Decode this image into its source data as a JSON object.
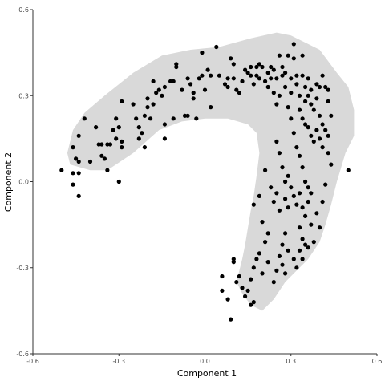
{
  "chart_data": {
    "type": "scatter",
    "title": "",
    "xlabel": "Component 1",
    "ylabel": "Component 2",
    "xlim": [
      -0.6,
      0.6
    ],
    "ylim": [
      -0.6,
      0.6
    ],
    "x_ticks": [
      -0.6,
      -0.3,
      0.0,
      0.3,
      0.6
    ],
    "x_tick_labels": [
      "-0.6",
      "-0.3",
      "0.0",
      "0.3",
      "0.6"
    ],
    "y_ticks": [
      -0.6,
      -0.3,
      0.0,
      0.3,
      0.6
    ],
    "y_tick_labels": [
      "-0.6",
      "-0.3",
      "0.0",
      "0.3",
      "0.6"
    ],
    "grid": false,
    "colors": {
      "points": "#000000",
      "hull": "#d9d9d9",
      "axis": "#333333"
    },
    "hull": [
      [
        -0.34,
        0.04
      ],
      [
        -0.25,
        0.1
      ],
      [
        -0.16,
        0.18
      ],
      [
        -0.08,
        0.21
      ],
      [
        0.0,
        0.22
      ],
      [
        0.08,
        0.22
      ],
      [
        0.15,
        0.2
      ],
      [
        0.18,
        0.17
      ],
      [
        0.19,
        0.1
      ],
      [
        0.18,
        0.02
      ],
      [
        0.17,
        -0.05
      ],
      [
        0.16,
        -0.1
      ],
      [
        0.15,
        -0.16
      ],
      [
        0.14,
        -0.22
      ],
      [
        0.13,
        -0.27
      ],
      [
        0.12,
        -0.31
      ],
      [
        0.11,
        -0.35
      ],
      [
        0.13,
        -0.39
      ],
      [
        0.16,
        -0.43
      ],
      [
        0.2,
        -0.45
      ],
      [
        0.24,
        -0.41
      ],
      [
        0.28,
        -0.35
      ],
      [
        0.32,
        -0.31
      ],
      [
        0.36,
        -0.27
      ],
      [
        0.4,
        -0.21
      ],
      [
        0.42,
        -0.15
      ],
      [
        0.44,
        -0.08
      ],
      [
        0.46,
        0.0
      ],
      [
        0.49,
        0.1
      ],
      [
        0.52,
        0.16
      ],
      [
        0.52,
        0.25
      ],
      [
        0.5,
        0.33
      ],
      [
        0.46,
        0.38
      ],
      [
        0.4,
        0.46
      ],
      [
        0.3,
        0.51
      ],
      [
        0.25,
        0.52
      ],
      [
        0.16,
        0.5
      ],
      [
        0.05,
        0.47
      ],
      [
        -0.05,
        0.46
      ],
      [
        -0.15,
        0.44
      ],
      [
        -0.25,
        0.38
      ],
      [
        -0.35,
        0.3
      ],
      [
        -0.42,
        0.24
      ],
      [
        -0.46,
        0.18
      ],
      [
        -0.48,
        0.1
      ],
      [
        -0.47,
        0.06
      ],
      [
        -0.4,
        0.04
      ]
    ],
    "points": [
      [
        -0.5,
        0.04
      ],
      [
        -0.46,
        0.03
      ],
      [
        -0.44,
        0.03
      ],
      [
        -0.46,
        -0.01
      ],
      [
        -0.44,
        -0.05
      ],
      [
        -0.46,
        0.12
      ],
      [
        -0.45,
        0.08
      ],
      [
        -0.44,
        0.07
      ],
      [
        -0.44,
        0.16
      ],
      [
        -0.42,
        0.22
      ],
      [
        -0.4,
        0.07
      ],
      [
        -0.38,
        0.19
      ],
      [
        -0.37,
        0.13
      ],
      [
        -0.36,
        0.13
      ],
      [
        -0.36,
        0.09
      ],
      [
        -0.35,
        0.08
      ],
      [
        -0.34,
        0.13
      ],
      [
        -0.34,
        0.04
      ],
      [
        -0.33,
        0.13
      ],
      [
        -0.32,
        0.18
      ],
      [
        -0.31,
        0.22
      ],
      [
        -0.31,
        0.15
      ],
      [
        -0.3,
        0.19
      ],
      [
        -0.29,
        0.14
      ],
      [
        -0.29,
        0.12
      ],
      [
        -0.3,
        0.0
      ],
      [
        -0.29,
        0.28
      ],
      [
        -0.25,
        0.27
      ],
      [
        -0.24,
        0.22
      ],
      [
        -0.23,
        0.19
      ],
      [
        -0.23,
        0.15
      ],
      [
        -0.22,
        0.17
      ],
      [
        -0.21,
        0.23
      ],
      [
        -0.21,
        0.12
      ],
      [
        -0.2,
        0.29
      ],
      [
        -0.2,
        0.26
      ],
      [
        -0.19,
        0.22
      ],
      [
        -0.18,
        0.35
      ],
      [
        -0.18,
        0.27
      ],
      [
        -0.17,
        0.31
      ],
      [
        -0.16,
        0.32
      ],
      [
        -0.15,
        0.3
      ],
      [
        -0.14,
        0.33
      ],
      [
        -0.14,
        0.2
      ],
      [
        -0.14,
        0.15
      ],
      [
        -0.12,
        0.35
      ],
      [
        -0.11,
        0.35
      ],
      [
        -0.11,
        0.22
      ],
      [
        -0.1,
        0.41
      ],
      [
        -0.1,
        0.4
      ],
      [
        -0.08,
        0.32
      ],
      [
        -0.07,
        0.23
      ],
      [
        -0.06,
        0.36
      ],
      [
        -0.06,
        0.23
      ],
      [
        -0.05,
        0.34
      ],
      [
        -0.04,
        0.31
      ],
      [
        -0.04,
        0.29
      ],
      [
        -0.03,
        0.22
      ],
      [
        -0.02,
        0.36
      ],
      [
        -0.01,
        0.45
      ],
      [
        -0.01,
        0.37
      ],
      [
        0.0,
        0.32
      ],
      [
        0.01,
        0.39
      ],
      [
        0.02,
        0.37
      ],
      [
        0.02,
        0.26
      ],
      [
        0.04,
        0.47
      ],
      [
        0.05,
        0.37
      ],
      [
        0.07,
        0.34
      ],
      [
        0.08,
        0.36
      ],
      [
        0.08,
        0.33
      ],
      [
        0.09,
        0.43
      ],
      [
        0.1,
        0.41
      ],
      [
        0.1,
        0.36
      ],
      [
        0.11,
        0.32
      ],
      [
        0.12,
        0.31
      ],
      [
        0.13,
        0.35
      ],
      [
        0.14,
        0.39
      ],
      [
        0.15,
        0.38
      ],
      [
        0.16,
        0.4
      ],
      [
        0.16,
        0.37
      ],
      [
        0.17,
        0.34
      ],
      [
        0.18,
        0.4
      ],
      [
        0.18,
        0.37
      ],
      [
        0.19,
        0.41
      ],
      [
        0.19,
        0.36
      ],
      [
        0.2,
        0.4
      ],
      [
        0.21,
        0.35
      ],
      [
        0.22,
        0.38
      ],
      [
        0.22,
        0.33
      ],
      [
        0.23,
        0.4
      ],
      [
        0.23,
        0.36
      ],
      [
        0.24,
        0.39
      ],
      [
        0.24,
        0.31
      ],
      [
        0.25,
        0.36
      ],
      [
        0.25,
        0.27
      ],
      [
        0.26,
        0.44
      ],
      [
        0.26,
        0.3
      ],
      [
        0.27,
        0.37
      ],
      [
        0.27,
        0.4
      ],
      [
        0.28,
        0.38
      ],
      [
        0.28,
        0.33
      ],
      [
        0.29,
        0.44
      ],
      [
        0.29,
        0.26
      ],
      [
        0.3,
        0.31
      ],
      [
        0.3,
        0.36
      ],
      [
        0.31,
        0.48
      ],
      [
        0.31,
        0.43
      ],
      [
        0.32,
        0.37
      ],
      [
        0.32,
        0.34
      ],
      [
        0.33,
        0.3
      ],
      [
        0.34,
        0.44
      ],
      [
        0.34,
        0.37
      ],
      [
        0.35,
        0.33
      ],
      [
        0.35,
        0.28
      ],
      [
        0.36,
        0.36
      ],
      [
        0.36,
        0.3
      ],
      [
        0.37,
        0.32
      ],
      [
        0.37,
        0.27
      ],
      [
        0.38,
        0.25
      ],
      [
        0.39,
        0.34
      ],
      [
        0.39,
        0.29
      ],
      [
        0.4,
        0.33
      ],
      [
        0.4,
        0.23
      ],
      [
        0.41,
        0.37
      ],
      [
        0.41,
        0.2
      ],
      [
        0.42,
        0.33
      ],
      [
        0.43,
        0.32
      ],
      [
        0.43,
        0.28
      ],
      [
        0.44,
        0.23
      ],
      [
        0.33,
        0.25
      ],
      [
        0.34,
        0.22
      ],
      [
        0.35,
        0.2
      ],
      [
        0.36,
        0.19
      ],
      [
        0.37,
        0.16
      ],
      [
        0.38,
        0.14
      ],
      [
        0.39,
        0.18
      ],
      [
        0.4,
        0.15
      ],
      [
        0.41,
        0.12
      ],
      [
        0.42,
        0.18
      ],
      [
        0.43,
        0.16
      ],
      [
        0.43,
        0.1
      ],
      [
        0.44,
        0.06
      ],
      [
        0.3,
        0.22
      ],
      [
        0.31,
        0.17
      ],
      [
        0.32,
        0.12
      ],
      [
        0.33,
        0.09
      ],
      [
        0.34,
        0.05
      ],
      [
        0.35,
        0.0
      ],
      [
        0.3,
        -0.02
      ],
      [
        0.31,
        -0.05
      ],
      [
        0.32,
        -0.08
      ],
      [
        0.33,
        -0.04
      ],
      [
        0.34,
        -0.09
      ],
      [
        0.35,
        -0.12
      ],
      [
        0.36,
        -0.07
      ],
      [
        0.37,
        -0.15
      ],
      [
        0.38,
        -0.21
      ],
      [
        0.39,
        -0.11
      ],
      [
        0.4,
        -0.16
      ],
      [
        0.41,
        -0.07
      ],
      [
        0.42,
        -0.01
      ],
      [
        0.36,
        -0.02
      ],
      [
        0.37,
        -0.04
      ],
      [
        0.33,
        -0.16
      ],
      [
        0.34,
        -0.2
      ],
      [
        0.35,
        -0.22
      ],
      [
        0.36,
        -0.23
      ],
      [
        0.34,
        -0.27
      ],
      [
        0.33,
        -0.24
      ],
      [
        0.32,
        -0.3
      ],
      [
        0.31,
        -0.27
      ],
      [
        0.29,
        -0.24
      ],
      [
        0.28,
        -0.18
      ],
      [
        0.27,
        -0.22
      ],
      [
        0.26,
        -0.1
      ],
      [
        0.25,
        -0.04
      ],
      [
        0.24,
        -0.07
      ],
      [
        0.23,
        -0.02
      ],
      [
        0.22,
        -0.18
      ],
      [
        0.21,
        -0.21
      ],
      [
        0.2,
        -0.14
      ],
      [
        0.19,
        -0.25
      ],
      [
        0.18,
        -0.27
      ],
      [
        0.17,
        -0.3
      ],
      [
        0.16,
        -0.34
      ],
      [
        0.15,
        -0.38
      ],
      [
        0.14,
        -0.4
      ],
      [
        0.13,
        -0.37
      ],
      [
        0.12,
        -0.33
      ],
      [
        0.11,
        -0.35
      ],
      [
        0.1,
        -0.28
      ],
      [
        0.1,
        -0.27
      ],
      [
        0.09,
        -0.48
      ],
      [
        0.06,
        -0.33
      ],
      [
        0.06,
        -0.38
      ],
      [
        0.08,
        -0.41
      ],
      [
        0.16,
        -0.43
      ],
      [
        0.17,
        -0.42
      ],
      [
        0.2,
        -0.32
      ],
      [
        0.22,
        -0.28
      ],
      [
        0.24,
        -0.35
      ],
      [
        0.25,
        -0.31
      ],
      [
        0.26,
        -0.26
      ],
      [
        0.27,
        -0.29
      ],
      [
        0.28,
        -0.32
      ],
      [
        0.17,
        -0.08
      ],
      [
        0.19,
        -0.05
      ],
      [
        0.21,
        0.04
      ],
      [
        0.25,
        0.14
      ],
      [
        0.26,
        0.1
      ],
      [
        0.27,
        0.05
      ],
      [
        0.28,
        0.0
      ],
      [
        0.29,
        0.02
      ],
      [
        0.28,
        -0.06
      ],
      [
        0.29,
        -0.09
      ],
      [
        0.5,
        0.04
      ]
    ]
  }
}
